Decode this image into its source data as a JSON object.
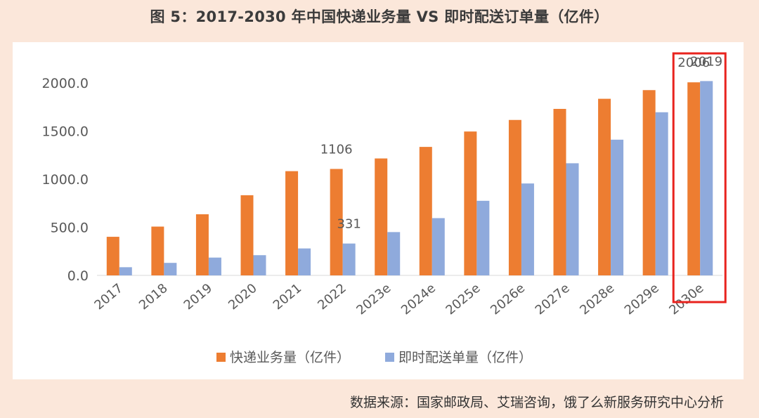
{
  "title": "图 5：2017-2030 年中国快递业务量 VS 即时配送订单量（亿件）",
  "source": "数据来源：国家邮政局、艾瑞咨询，饿了么新服务研究中心分析",
  "colors": {
    "express": "#ed7d31",
    "instant": "#8faadc",
    "highlight": "#e8231e",
    "axis_text": "#595959",
    "label_text": "#595959"
  },
  "chart_data": {
    "type": "bar",
    "categories": [
      "2017",
      "2018",
      "2019",
      "2020",
      "2021",
      "2022",
      "2023e",
      "2024e",
      "2025e",
      "2026e",
      "2027e",
      "2028e",
      "2029e",
      "2030e"
    ],
    "series": [
      {
        "name": "快递业务量（亿件）",
        "values": [
          401,
          507,
          635,
          833,
          1083,
          1106,
          1215,
          1335,
          1495,
          1615,
          1730,
          1835,
          1925,
          2006
        ]
      },
      {
        "name": "即时配送单量（亿件）",
        "values": [
          85,
          130,
          185,
          210,
          280,
          331,
          450,
          595,
          775,
          955,
          1165,
          1410,
          1695,
          2019
        ]
      }
    ],
    "data_labels": [
      {
        "series": 0,
        "index": 5,
        "text": "1106"
      },
      {
        "series": 1,
        "index": 5,
        "text": "331"
      },
      {
        "series": 0,
        "index": 13,
        "text": "2006"
      },
      {
        "series": 1,
        "index": 13,
        "text": "2019"
      }
    ],
    "yticks": [
      "0.0",
      "500.0",
      "1000.0",
      "1500.0",
      "2000.0"
    ],
    "ylim": [
      0,
      2000
    ],
    "grid": false,
    "legend": "bottom",
    "highlight_category": "2030e"
  }
}
